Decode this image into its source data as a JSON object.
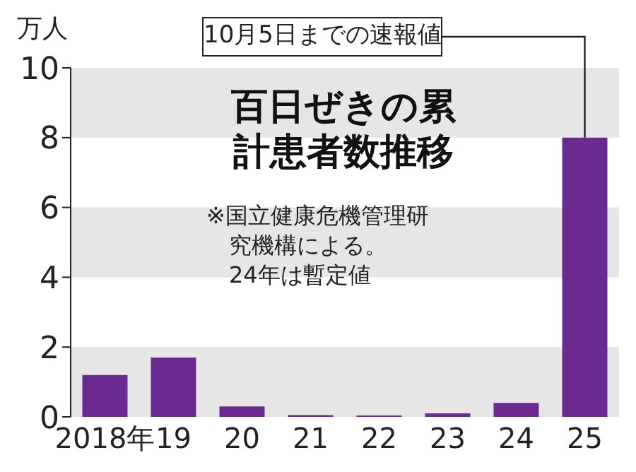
{
  "chart_data": {
    "type": "bar",
    "title": "百日ぜきの累計患者数推移",
    "ylabel": "万人",
    "categories": [
      "2018年",
      "19",
      "20",
      "21",
      "22",
      "23",
      "24",
      "25"
    ],
    "values": [
      1.2,
      1.7,
      0.3,
      0.05,
      0.04,
      0.1,
      0.4,
      8.0
    ],
    "color": "#6a2a90",
    "ylim": [
      0,
      10
    ],
    "yticks": [
      0,
      2,
      4,
      6,
      8,
      10
    ],
    "bands": [
      {
        "axis": "y",
        "from": 0,
        "to": 2,
        "color": "#e6e6e6"
      },
      {
        "axis": "y",
        "from": 4,
        "to": 6,
        "color": "#e6e6e6"
      },
      {
        "axis": "y",
        "from": 8,
        "to": 10,
        "color": "#e6e6e6"
      }
    ],
    "annotations": [
      {
        "text": "10月5日までの速報値",
        "x": "25",
        "y": 8.0
      },
      "※国立健康危機管理研究機構による。",
      "24年は暫定値"
    ]
  }
}
